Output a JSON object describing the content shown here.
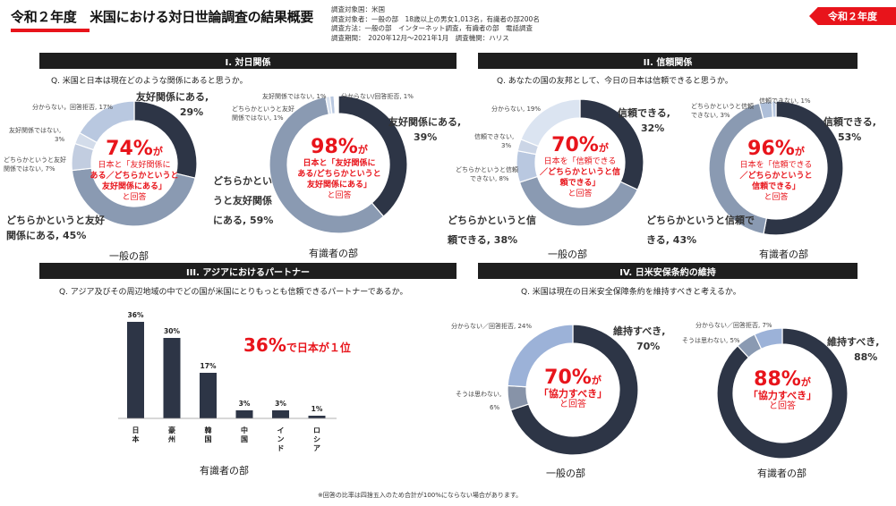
{
  "header": {
    "title": "令和２年度　米国における対日世論調査の結果概要",
    "badge": "令和２年度",
    "survey_lines": [
      "調査対象国：米国",
      "調査対象者：一般の部　18歳以上の男女1,013名，有識者の部200名",
      "調査方法：一般の部　インターネット調査，有識者の部　電話調査",
      "調査期間：　2020年12月～2021年1月　調査機関：ハリス"
    ]
  },
  "sections": {
    "s1": {
      "title": "I. 対日関係",
      "question": "Q. 米国と日本は現在どのような関係にあると思うか。"
    },
    "s2": {
      "title": "II. 信頼関係",
      "question": "Q. あなたの国の友邦として、今日の日本は信頼できると思うか。"
    },
    "s3": {
      "title": "III. アジアにおけるパートナー",
      "question": "Q. アジア及びその周辺地域の中でどの国が米国にとりもっとも信頼できるパートナーであるか。"
    },
    "s4": {
      "title": "IV. 日米安保条約の維持",
      "question": "Q. 米国は現在の日米安全保障条約を維持すべきと考えるか。"
    }
  },
  "colors": {
    "dark": "#2d3546",
    "mid": "#8a9ab2",
    "light": "#b9c8e0",
    "lighter": "#dbe4f1",
    "red": "#e8141b"
  },
  "donuts": {
    "d1": {
      "caption": "一般の部",
      "center": {
        "pct": "74%",
        "ga": "が",
        "l1": "日本と「友好関係に",
        "l2": "ある／どちらかというと",
        "l2b": "友好関係にある」",
        "l3": "と回答"
      },
      "labels": {
        "a": [
          "友好関係にある,",
          "29%"
        ],
        "b": [
          "どちらかというと友好",
          "関係にある, 45%"
        ],
        "c": [
          "どちらかというと友好",
          "関係ではない, 7%"
        ],
        "d": [
          "友好関係ではない,",
          "3%"
        ],
        "e": [
          "分からない，回答拒否, 17%"
        ]
      }
    },
    "d2": {
      "caption": "有識者の部",
      "center": {
        "pct": "98%",
        "ga": "が",
        "l1": "日本と「友好関係に",
        "l2": "ある/どちらかというと",
        "l2b": "友好関係にある」",
        "l3": "と回答"
      },
      "labels": {
        "a": [
          "友好関係にある,",
          "39%"
        ],
        "b": [
          "どちらかというと友好関係に",
          "ある, 59%"
        ],
        "c": [
          "どちらかというと友好",
          "関係ではない, 1%"
        ],
        "d": [
          "友好関係ではない, 1%"
        ],
        "e": [
          "分からない/回答拒否, 1%"
        ]
      }
    },
    "d3": {
      "caption": "一般の部",
      "center": {
        "pct": "70%",
        "ga": "が",
        "l1": "日本を「信頼できる",
        "l2": "／どちらかというと信",
        "l2b": "頼できる」",
        "l3": "と回答"
      },
      "labels": {
        "a": [
          "信頼できる,",
          "32%"
        ],
        "b": [
          "どちらかというと信",
          "頼できる, 38%"
        ],
        "c": [
          "どちらかというと信頼",
          "できない, 8%"
        ],
        "d": [
          "信頼できない,",
          "3%"
        ],
        "e": [
          "分からない, 19%"
        ]
      }
    },
    "d4": {
      "caption": "有識者の部",
      "center": {
        "pct": "96%",
        "ga": "が",
        "l1": "日本を「信頼できる",
        "l2": "／どちらかというと",
        "l2b": "信頼できる」",
        "l3": "と回答"
      },
      "labels": {
        "a": [
          "信頼できる,",
          "53%"
        ],
        "b": [
          "どちらかというと信頼で",
          "きる, 43%"
        ],
        "c": [
          "どちらかというと信頼",
          "できない, 3%"
        ],
        "d": [
          "信頼できない, 1%"
        ]
      }
    },
    "d5": {
      "caption": "一般の部",
      "center": {
        "pct": "70%",
        "ga": "が",
        "l1": "「協力すべき」",
        "l3": "と回答"
      },
      "labels": {
        "a": [
          "維持すべき,",
          "70%"
        ],
        "b": [
          "そうは思わない,",
          "6%"
        ],
        "c": [
          "分からない／回答拒否, 24%"
        ]
      }
    },
    "d6": {
      "caption": "有識者の部",
      "center": {
        "pct": "88%",
        "ga": "が",
        "l1": "「協力すべき」",
        "l3": "と回答"
      },
      "labels": {
        "a": [
          "維持すべき,",
          "88%"
        ],
        "b": [
          "そうは思わない, 5%"
        ],
        "c": [
          "分からない／回答拒否, 7%"
        ]
      }
    }
  },
  "bar_headline": {
    "pct": "36%",
    "text": "で日本が１位"
  },
  "bar_caption": "有識者の部",
  "note": "※回答の比率は四捨五入のため合計が100%にならない場合があります。",
  "chart_data": [
    {
      "type": "pie",
      "title": "一般の部",
      "donut": true,
      "labels": [
        "友好関係にある",
        "どちらかというと友好関係にある",
        "どちらかというと友好関係ではない",
        "友好関係ではない",
        "分からない，回答拒否"
      ],
      "values": [
        29,
        45,
        7,
        3,
        17
      ]
    },
    {
      "type": "pie",
      "title": "有識者の部",
      "donut": true,
      "labels": [
        "友好関係にある",
        "どちらかというと友好関係にある",
        "どちらかというと友好関係ではない",
        "友好関係ではない",
        "分からない/回答拒否"
      ],
      "values": [
        39,
        59,
        1,
        1,
        1
      ]
    },
    {
      "type": "pie",
      "title": "一般の部",
      "donut": true,
      "labels": [
        "信頼できる",
        "どちらかというと信頼できる",
        "どちらかというと信頼できない",
        "信頼できない",
        "分からない"
      ],
      "values": [
        32,
        38,
        8,
        3,
        19
      ]
    },
    {
      "type": "pie",
      "title": "有識者の部",
      "donut": true,
      "labels": [
        "信頼できる",
        "どちらかというと信頼できる",
        "どちらかというと信頼できない",
        "信頼できない"
      ],
      "values": [
        53,
        43,
        3,
        1
      ]
    },
    {
      "type": "bar",
      "title": "有識者の部",
      "categories": [
        "日本",
        "豪州",
        "韓国",
        "中国",
        "インド",
        "ロシア"
      ],
      "values": [
        36,
        30,
        17,
        3,
        3,
        1
      ],
      "value_labels": [
        "36%",
        "30%",
        "17%",
        "3%",
        "3%",
        "1%"
      ]
    },
    {
      "type": "pie",
      "title": "一般の部",
      "donut": true,
      "labels": [
        "維持すべき",
        "そうは思わない",
        "分からない／回答拒否"
      ],
      "values": [
        70,
        6,
        24
      ]
    },
    {
      "type": "pie",
      "title": "有識者の部",
      "donut": true,
      "labels": [
        "維持すべき",
        "そうは思わない",
        "分からない／回答拒否"
      ],
      "values": [
        88,
        5,
        7
      ]
    }
  ]
}
